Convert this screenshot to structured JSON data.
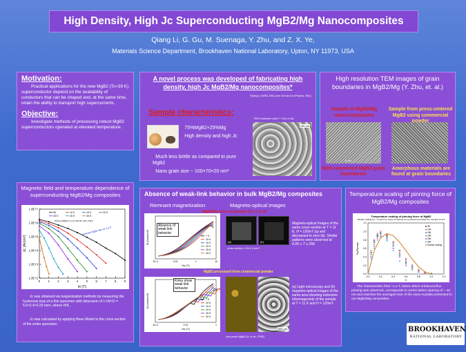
{
  "header": {
    "title": "High Density, High Jc Superconducting MgB2/Mg Nanocomposites",
    "authors": "Qiang Li, G. Gu, M. Suenaga, Y. Zhu, and Z. X. Ye,",
    "affiliation": "Materials Science Department, Brookhaven National Laboratory, Upton, NY 11973, USA"
  },
  "motivation": {
    "heading": "Motivation:",
    "text": "Practical applications for the new MgB2 (Tc=39 K) superconductor depend on the availability of conductors that can be shaped and, at the same time, retain the ability to transport high supercurrents.",
    "objective_heading": "Objective:",
    "objective_text": "Investigate methods of processing robust MgB2 superconductors operated at elevated temperature."
  },
  "novel": {
    "title": "A novel process was developed of fabricating high density, high Jc MgB2/Mg nanocomposites*",
    "credit": "*Qiang Li (MSD, BNL) and Genda Gu (Physics, BNL)",
    "sample_heading": "Sample characteristics:",
    "tem_label": "TEM character (also Y. Zhu et al)",
    "scale": "100 nm",
    "bullets": [
      "75%MgB2+25%Mg",
      "High density and high Jc",
      "Much less brittle as compared to pure MgB2",
      "Nano grain size ~ 100×70×20 nm³"
    ]
  },
  "tem": {
    "title": "High resolution TEM images of grain boundaries in MgB2/Mg (Y. Zhu, et. al.)",
    "left_head": "Sample of MgB2/Mg nano-composites",
    "right_head": "Sample from press-sintered MgB2 using commercial powder",
    "left_scale": "2 nm",
    "left_foot": "Well-connected MgB2 grain boundaries",
    "right_foot": "Amorphous materials are found at grain boundaries"
  },
  "mag": {
    "title": "Magnetic field and temperature dependence of superconducting MgB2/Mg composites",
    "ylabel": "Jc (A/cm²)",
    "xlabel": "H (T)",
    "yticks": [
      "1.0E+7",
      "1.0E+6",
      "1.0E+5",
      "1.0E+4",
      "1.0E+3",
      "1.0E+2"
    ],
    "xticks": [
      "0",
      "1",
      "2",
      "3",
      "4",
      "5",
      "6",
      "7",
      "8",
      "9"
    ],
    "legend_top": [
      "5K",
      "10 K",
      "15 K",
      "20 K",
      "25 K",
      "30 K",
      "35 K"
    ],
    "legend_note": "Sintered MgB2 (Li et al. PRL 86, 2421, 2001)",
    "annot": "Sintered MgB2 film at 4.2 K",
    "caption1": "Jc was obtained via magnetization methods by measuring the hysteresis loop of a thin specimen with dimension of L×W×D = 5.6×2.4×0.25 mm³, where H//L.",
    "caption2": "Jc was calculated by applying Bean Model to the cross-section of the entire specimen."
  },
  "weak": {
    "title": "Absence of weak-link behavior in bulk MgB2/Mg composites",
    "sub_left": "Remnant magnetization",
    "sub_right": "Magneto-optical images",
    "mo_caption_top": "MgB2/Mg nano-composites (Q. Li, et al)",
    "mo_text_1": "Magneto-optical images of the same cross-section at T = 11 K, H = 120mT (a) and decreased to zero (b). Similar patterns were observed at 4.2K ≤ T ≤ 25K",
    "mo_section_label": "cross-section 1.5x1.5 mm²",
    "sublabel_a": "(a)",
    "sublabel_b": "(b)",
    "mo_caption_bottom": "MgB2 processed from commercial powder",
    "mo_text_2": "(a) Light microscopy and (b) magneto-optical images of the same area showing extensive inhomogeneity of the sample at T = 11 K and H = 120mT.",
    "hot_press_label": "Hot press MgB2 (Li et al., PRB)",
    "scale_bar": "500 μm",
    "callout_1": "Absence of weak link behavior",
    "callout_2": "Kinks show weak link behavior",
    "ylabel": "M (emu/cm³)",
    "xlabel": "Ha (T)",
    "graph_legend": [
      "7 K",
      "10 K",
      "15 K",
      "20 K",
      "25 K",
      "30 K"
    ],
    "xtick_top": [
      "1E-4",
      "0.01",
      "1",
      "10"
    ],
    "xtick_bottom": [
      "1E-4",
      "0.01",
      "1"
    ]
  },
  "temp": {
    "title": "Temperature scaling of pinning force of MgB2/Mg composites",
    "plot_title": "Temperature scaling of pinning force of MgB2",
    "plot_sub": "Weaker scaling Fp ~ h^p(1-h)^q, where h0 defines an empirical irreversible line. Sample: D=0.6",
    "legend": [
      "5K",
      "10K",
      "15K",
      "20K",
      "25K",
      "30K",
      "Kramer scaling"
    ],
    "caption": "The characteristic field ~1.2 T, below which enhanced flux pinning was observed, corresponds to vortex lattice spacing of ~ 40 nm and matches the averaged size of the nano-crystals presented in our MgB2/Mg composites."
  },
  "logo": {
    "name": "BROOKHAVEN",
    "sub": "NATIONAL LABORATORY"
  },
  "chart_data": [
    {
      "type": "line",
      "title": "",
      "xlabel": "H (T)",
      "ylabel": "Jc (A/cm²)",
      "xlim": [
        0,
        9
      ],
      "ylim": [
        100,
        10000000
      ],
      "yscale": "log",
      "series": [
        {
          "name": "5K",
          "x": [
            0,
            1,
            2,
            3,
            4,
            5,
            6,
            7,
            8,
            9
          ],
          "values": [
            1800000,
            1200000,
            700000,
            400000,
            200000,
            90000,
            40000,
            15000,
            6000,
            2000
          ]
        },
        {
          "name": "10 K",
          "x": [
            0,
            1,
            2,
            3,
            4,
            5,
            6,
            7
          ],
          "values": [
            1500000,
            900000,
            450000,
            180000,
            60000,
            18000,
            5000,
            1200
          ]
        },
        {
          "name": "15 K",
          "x": [
            0,
            1,
            2,
            3,
            4,
            5,
            6
          ],
          "values": [
            1200000,
            650000,
            250000,
            70000,
            15000,
            3000,
            500
          ]
        },
        {
          "name": "20 K",
          "x": [
            0,
            1,
            2,
            3,
            4,
            5
          ],
          "values": [
            900000,
            400000,
            100000,
            15000,
            2000,
            300
          ]
        },
        {
          "name": "25 K",
          "x": [
            0,
            1,
            2,
            3,
            4
          ],
          "values": [
            600000,
            180000,
            25000,
            2500,
            300
          ]
        },
        {
          "name": "30 K",
          "x": [
            0,
            0.5,
            1,
            1.5,
            2,
            2.5
          ],
          "values": [
            300000,
            80000,
            15000,
            2500,
            600,
            200
          ]
        },
        {
          "name": "35 K",
          "x": [
            0,
            0.25,
            0.5,
            0.75,
            1
          ],
          "values": [
            80000,
            15000,
            3000,
            700,
            200
          ]
        }
      ]
    },
    {
      "type": "scatter",
      "title": "Temperature scaling of pinning force of MgB2",
      "xlabel": "h",
      "ylabel": "Fp/Fpmax",
      "xlim": [
        0,
        1.2
      ],
      "ylim": [
        0,
        1.2
      ],
      "series": [
        {
          "name": "5K",
          "x": [
            0.05,
            0.1,
            0.15,
            0.2,
            0.3,
            0.4,
            0.5,
            0.6,
            0.7,
            0.8,
            0.9,
            1.0
          ],
          "values": [
            0.5,
            0.75,
            0.9,
            0.95,
            0.9,
            0.75,
            0.55,
            0.35,
            0.2,
            0.1,
            0.04,
            0.01
          ]
        },
        {
          "name": "10K",
          "x": [
            0.05,
            0.1,
            0.15,
            0.2,
            0.3,
            0.4,
            0.5,
            0.6,
            0.7,
            0.8,
            0.9
          ],
          "values": [
            0.55,
            0.8,
            0.95,
            1.0,
            0.92,
            0.72,
            0.5,
            0.3,
            0.16,
            0.07,
            0.02
          ]
        },
        {
          "name": "15K",
          "x": [
            0.05,
            0.1,
            0.15,
            0.2,
            0.3,
            0.4,
            0.5,
            0.6,
            0.7,
            0.8
          ],
          "values": [
            0.5,
            0.78,
            0.92,
            0.97,
            0.88,
            0.68,
            0.46,
            0.27,
            0.14,
            0.05
          ]
        },
        {
          "name": "20K",
          "x": [
            0.05,
            0.1,
            0.15,
            0.2,
            0.3,
            0.4,
            0.5,
            0.6,
            0.7
          ],
          "values": [
            0.45,
            0.7,
            0.88,
            0.95,
            0.85,
            0.65,
            0.44,
            0.25,
            0.1
          ]
        },
        {
          "name": "25K",
          "x": [
            0.05,
            0.1,
            0.15,
            0.2,
            0.3,
            0.4,
            0.5,
            0.6
          ],
          "values": [
            0.4,
            0.65,
            0.85,
            0.9,
            0.82,
            0.6,
            0.4,
            0.2
          ]
        },
        {
          "name": "30K",
          "x": [
            0.05,
            0.1,
            0.15,
            0.2,
            0.3,
            0.4,
            0.5
          ],
          "values": [
            0.35,
            0.6,
            0.8,
            0.88,
            0.78,
            0.55,
            0.3
          ]
        },
        {
          "name": "Kramer scaling",
          "x": [
            0.0,
            0.1,
            0.2,
            0.3,
            0.4,
            0.5,
            0.6,
            0.7,
            0.8,
            0.9,
            1.0
          ],
          "values": [
            0.0,
            0.55,
            0.85,
            0.95,
            0.9,
            0.75,
            0.55,
            0.35,
            0.17,
            0.05,
            0.0
          ]
        }
      ]
    }
  ],
  "colors": {
    "background": "#4a72d2",
    "panel": "#8a4fd6",
    "title_red": "#d81d1d",
    "accent_yellow": "#ffe14a"
  }
}
